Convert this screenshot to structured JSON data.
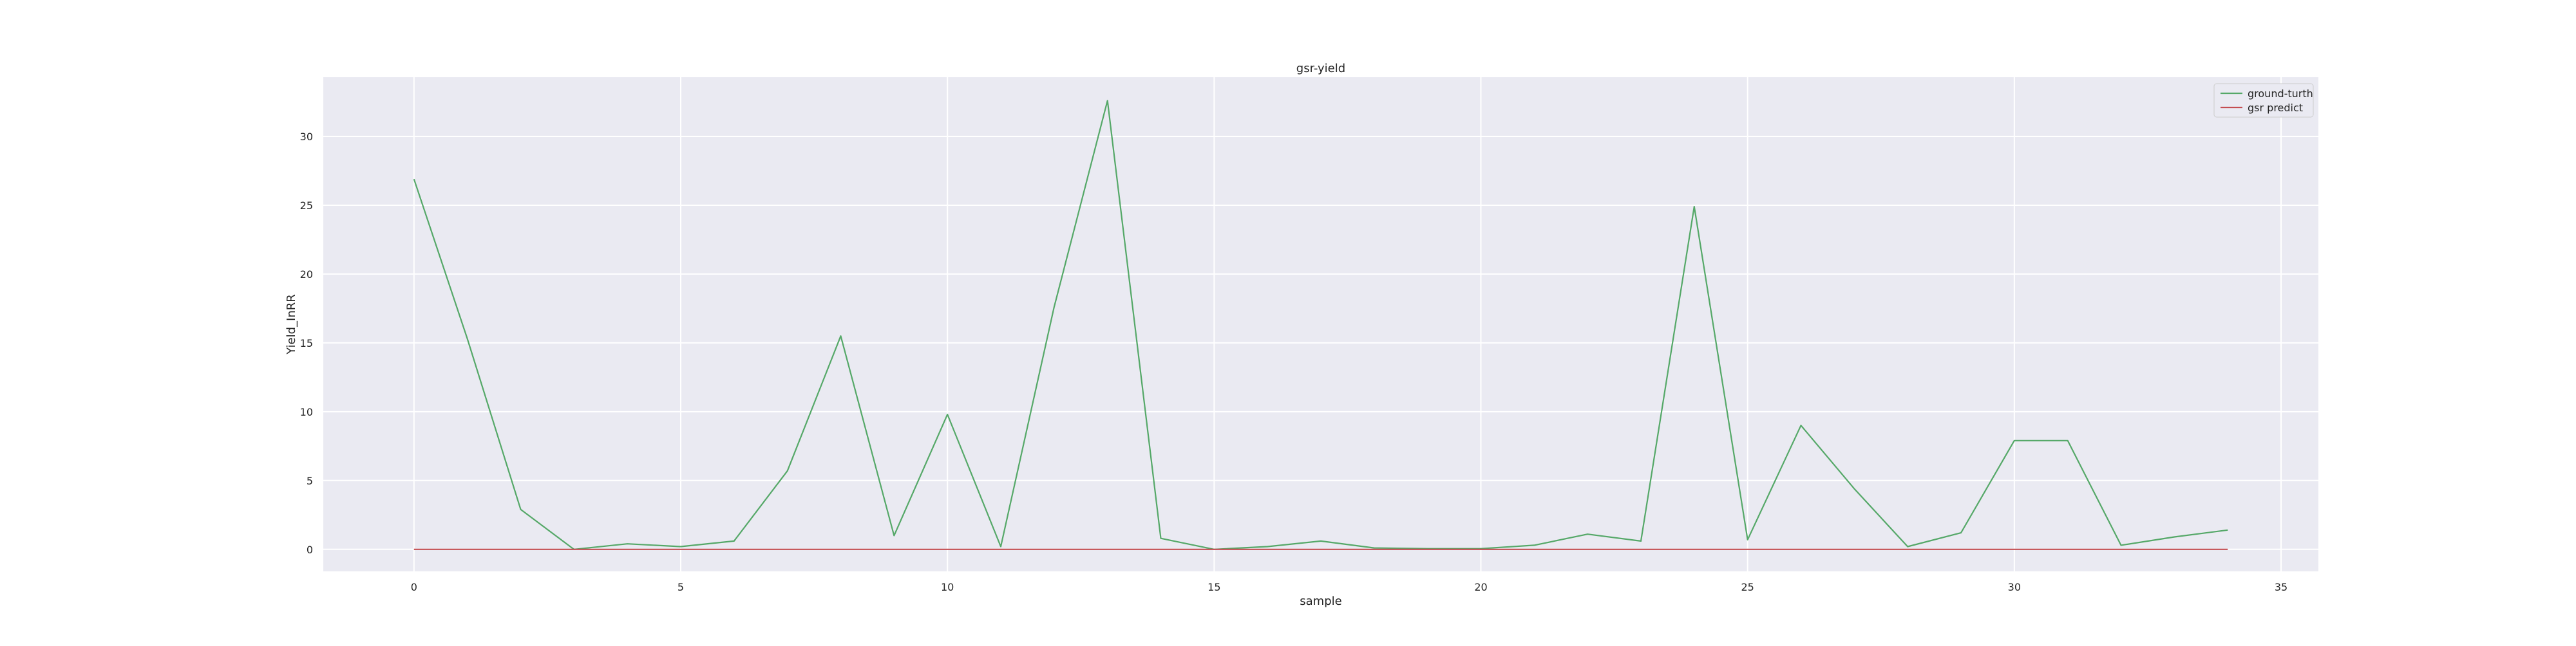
{
  "chart_data": {
    "type": "line",
    "title": "gsr-yield",
    "xlabel": "sample",
    "ylabel": "Yield_InRR",
    "xlim": [
      -1.7,
      35.7
    ],
    "ylim": [
      -1.6,
      34.3
    ],
    "x_ticks": [
      0,
      5,
      10,
      15,
      20,
      25,
      30,
      35
    ],
    "y_ticks": [
      0,
      5,
      10,
      15,
      20,
      25,
      30
    ],
    "grid": true,
    "background": "#eaeaf2",
    "legend_position": "top-right",
    "x": [
      0,
      1,
      2,
      3,
      4,
      5,
      6,
      7,
      8,
      9,
      10,
      11,
      12,
      13,
      14,
      15,
      16,
      17,
      18,
      19,
      20,
      21,
      22,
      23,
      24,
      25,
      26,
      27,
      28,
      29,
      30,
      31,
      32,
      33,
      34
    ],
    "series": [
      {
        "name": "ground-turth",
        "color": "#55a868",
        "values": [
          26.9,
          15.3,
          2.9,
          0.0,
          0.4,
          0.2,
          0.6,
          5.7,
          15.5,
          1.0,
          9.8,
          0.2,
          17.6,
          32.6,
          0.8,
          0.0,
          0.2,
          0.6,
          0.1,
          0.05,
          0.05,
          0.3,
          1.1,
          0.6,
          24.9,
          0.7,
          9.0,
          4.4,
          0.2,
          1.2,
          7.9,
          7.9,
          0.3,
          0.9,
          1.4
        ]
      },
      {
        "name": "gsr predict",
        "color": "#c44e52",
        "values": [
          0,
          0,
          0,
          0,
          0,
          0,
          0,
          0,
          0,
          0,
          0,
          0,
          0,
          0,
          0,
          0,
          0,
          0,
          0,
          0,
          0,
          0,
          0,
          0,
          0,
          0,
          0,
          0,
          0,
          0,
          0,
          0,
          0,
          0,
          0
        ]
      }
    ]
  }
}
